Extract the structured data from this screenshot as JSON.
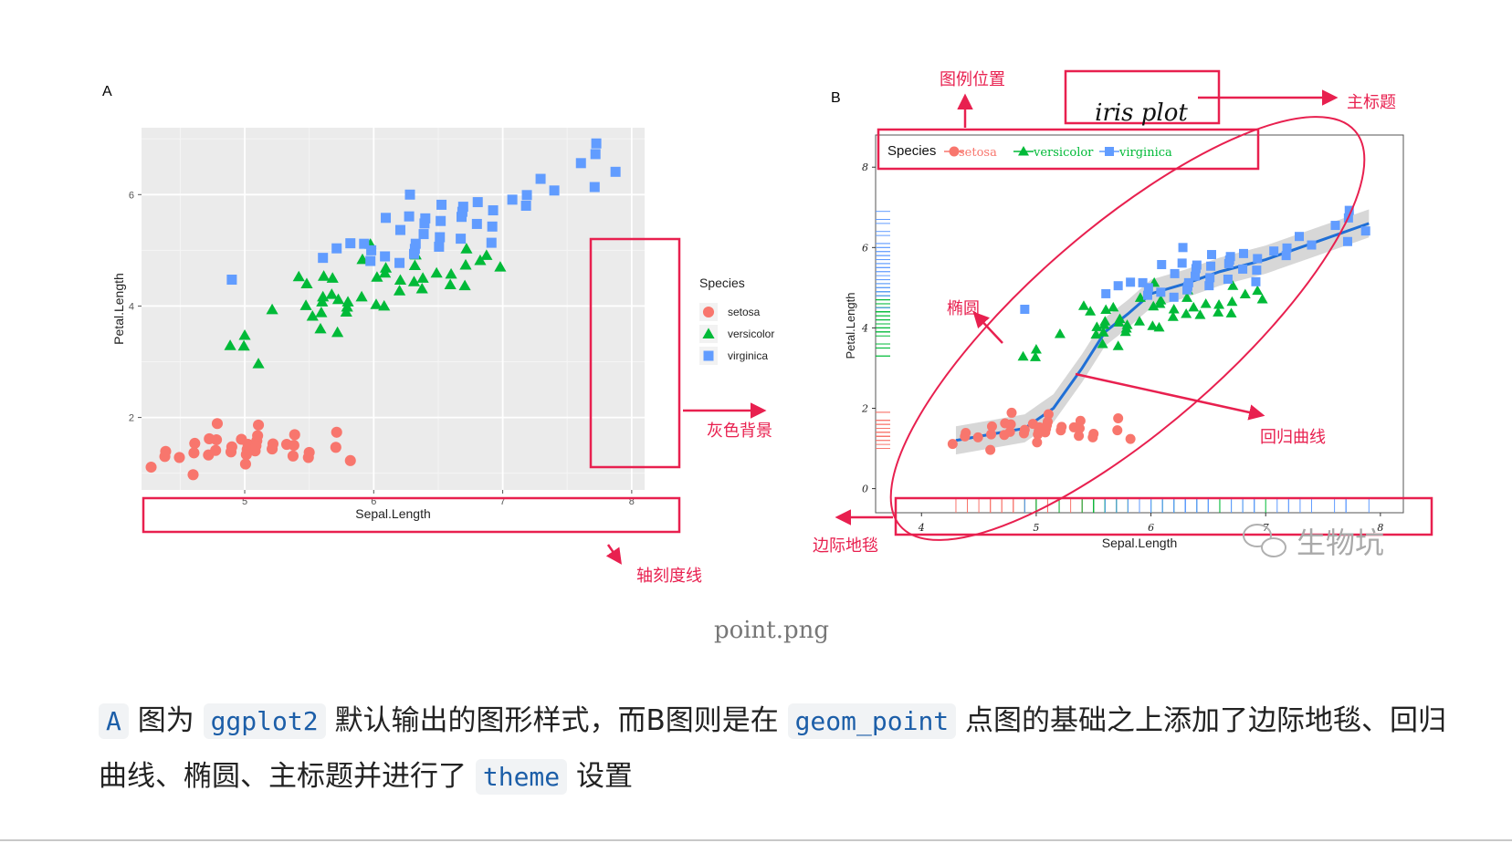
{
  "chart_data": [
    {
      "panel": "A",
      "type": "scatter",
      "title": "",
      "xlabel": "Sepal.Length",
      "ylabel": "Petal.Length",
      "xlim": [
        4.2,
        8.1
      ],
      "ylim": [
        0.7,
        7.2
      ],
      "xticks": [
        "5",
        "6",
        "7",
        "8"
      ],
      "yticks": [
        "2",
        "4",
        "6"
      ],
      "grid": true,
      "background": "#ebebeb",
      "legend_position": "right",
      "legend_title": "Species",
      "series": [
        {
          "name": "setosa",
          "marker": "circle",
          "color": "#f8766d",
          "points": [
            [
              4.3,
              1.1
            ],
            [
              4.4,
              1.3
            ],
            [
              4.4,
              1.4
            ],
            [
              4.5,
              1.3
            ],
            [
              4.6,
              1.0
            ],
            [
              4.6,
              1.4
            ],
            [
              4.6,
              1.5
            ],
            [
              4.7,
              1.3
            ],
            [
              4.7,
              1.6
            ],
            [
              4.8,
              1.4
            ],
            [
              4.8,
              1.6
            ],
            [
              4.8,
              1.9
            ],
            [
              4.9,
              1.4
            ],
            [
              4.9,
              1.5
            ],
            [
              5.0,
              1.2
            ],
            [
              5.0,
              1.3
            ],
            [
              5.0,
              1.4
            ],
            [
              5.0,
              1.5
            ],
            [
              5.0,
              1.6
            ],
            [
              5.1,
              1.4
            ],
            [
              5.1,
              1.5
            ],
            [
              5.1,
              1.6
            ],
            [
              5.1,
              1.7
            ],
            [
              5.1,
              1.9
            ],
            [
              5.2,
              1.4
            ],
            [
              5.2,
              1.5
            ],
            [
              5.3,
              1.5
            ],
            [
              5.4,
              1.3
            ],
            [
              5.4,
              1.5
            ],
            [
              5.4,
              1.7
            ],
            [
              5.5,
              1.3
            ],
            [
              5.5,
              1.4
            ],
            [
              5.7,
              1.5
            ],
            [
              5.7,
              1.7
            ],
            [
              5.8,
              1.2
            ]
          ]
        },
        {
          "name": "versicolor",
          "marker": "triangle",
          "color": "#00ba38",
          "points": [
            [
              4.9,
              3.3
            ],
            [
              5.0,
              3.3
            ],
            [
              5.0,
              3.5
            ],
            [
              5.1,
              3.0
            ],
            [
              5.2,
              3.9
            ],
            [
              5.4,
              4.5
            ],
            [
              5.5,
              3.8
            ],
            [
              5.5,
              4.0
            ],
            [
              5.5,
              4.4
            ],
            [
              5.6,
              3.6
            ],
            [
              5.6,
              3.9
            ],
            [
              5.6,
              4.1
            ],
            [
              5.6,
              4.2
            ],
            [
              5.6,
              4.5
            ],
            [
              5.7,
              3.5
            ],
            [
              5.7,
              4.1
            ],
            [
              5.7,
              4.2
            ],
            [
              5.7,
              4.5
            ],
            [
              5.8,
              3.9
            ],
            [
              5.8,
              4.0
            ],
            [
              5.8,
              4.1
            ],
            [
              5.9,
              4.2
            ],
            [
              5.9,
              4.8
            ],
            [
              6.0,
              4.0
            ],
            [
              6.0,
              4.5
            ],
            [
              6.0,
              5.1
            ],
            [
              6.1,
              4.0
            ],
            [
              6.1,
              4.6
            ],
            [
              6.1,
              4.7
            ],
            [
              6.2,
              4.3
            ],
            [
              6.2,
              4.5
            ],
            [
              6.3,
              4.4
            ],
            [
              6.3,
              4.7
            ],
            [
              6.3,
              4.9
            ],
            [
              6.4,
              4.3
            ],
            [
              6.4,
              4.5
            ],
            [
              6.5,
              4.6
            ],
            [
              6.6,
              4.4
            ],
            [
              6.6,
              4.6
            ],
            [
              6.7,
              4.4
            ],
            [
              6.7,
              4.7
            ],
            [
              6.7,
              5.0
            ],
            [
              6.8,
              4.8
            ],
            [
              6.9,
              4.9
            ],
            [
              7.0,
              4.7
            ]
          ]
        },
        {
          "name": "virginica",
          "marker": "square",
          "color": "#619cff",
          "points": [
            [
              4.9,
              4.5
            ],
            [
              5.6,
              4.9
            ],
            [
              5.7,
              5.0
            ],
            [
              5.8,
              5.1
            ],
            [
              5.9,
              5.1
            ],
            [
              6.0,
              4.8
            ],
            [
              6.0,
              5.0
            ],
            [
              6.1,
              4.9
            ],
            [
              6.1,
              5.6
            ],
            [
              6.2,
              4.8
            ],
            [
              6.2,
              5.4
            ],
            [
              6.3,
              4.9
            ],
            [
              6.3,
              5.0
            ],
            [
              6.3,
              5.1
            ],
            [
              6.3,
              5.6
            ],
            [
              6.3,
              6.0
            ],
            [
              6.4,
              5.3
            ],
            [
              6.4,
              5.5
            ],
            [
              6.4,
              5.6
            ],
            [
              6.5,
              5.1
            ],
            [
              6.5,
              5.2
            ],
            [
              6.5,
              5.5
            ],
            [
              6.5,
              5.8
            ],
            [
              6.7,
              5.2
            ],
            [
              6.7,
              5.6
            ],
            [
              6.7,
              5.7
            ],
            [
              6.7,
              5.8
            ],
            [
              6.8,
              5.5
            ],
            [
              6.8,
              5.9
            ],
            [
              6.9,
              5.1
            ],
            [
              6.9,
              5.4
            ],
            [
              6.9,
              5.7
            ],
            [
              7.1,
              5.9
            ],
            [
              7.2,
              5.8
            ],
            [
              7.2,
              6.0
            ],
            [
              7.3,
              6.3
            ],
            [
              7.4,
              6.1
            ],
            [
              7.6,
              6.6
            ],
            [
              7.7,
              6.1
            ],
            [
              7.7,
              6.7
            ],
            [
              7.7,
              6.9
            ],
            [
              7.9,
              6.4
            ]
          ]
        }
      ],
      "annotations": [
        "灰色背景",
        "轴刻度线"
      ]
    },
    {
      "panel": "B",
      "type": "scatter",
      "title": "iris plot",
      "xlabel": "Sepal.Length",
      "ylabel": "Petal.Length",
      "xlim": [
        3.6,
        8.2
      ],
      "ylim": [
        -0.6,
        8.8
      ],
      "xticks": [
        "4",
        "5",
        "6",
        "7",
        "8"
      ],
      "yticks": [
        "0",
        "2",
        "4",
        "6",
        "8"
      ],
      "grid": false,
      "background": "#ffffff",
      "legend_position": "top-left",
      "legend_title": "Species",
      "rug": true,
      "smooth": [
        [
          4.3,
          1.2
        ],
        [
          4.6,
          1.35
        ],
        [
          4.9,
          1.5
        ],
        [
          5.15,
          2.0
        ],
        [
          5.4,
          3.0
        ],
        [
          5.6,
          3.9
        ],
        [
          5.8,
          4.35
        ],
        [
          6.0,
          4.85
        ],
        [
          6.3,
          5.1
        ],
        [
          6.6,
          5.4
        ],
        [
          7.0,
          5.7
        ],
        [
          7.4,
          6.1
        ],
        [
          7.9,
          6.6
        ]
      ],
      "series": [
        {
          "name": "setosa",
          "marker": "circle",
          "color": "#f8766d",
          "points": [
            [
              4.3,
              1.1
            ],
            [
              4.4,
              1.3
            ],
            [
              4.4,
              1.4
            ],
            [
              4.5,
              1.3
            ],
            [
              4.6,
              1.0
            ],
            [
              4.6,
              1.4
            ],
            [
              4.6,
              1.5
            ],
            [
              4.7,
              1.3
            ],
            [
              4.7,
              1.6
            ],
            [
              4.8,
              1.4
            ],
            [
              4.8,
              1.6
            ],
            [
              4.8,
              1.9
            ],
            [
              4.9,
              1.4
            ],
            [
              4.9,
              1.5
            ],
            [
              5.0,
              1.2
            ],
            [
              5.0,
              1.3
            ],
            [
              5.0,
              1.4
            ],
            [
              5.0,
              1.5
            ],
            [
              5.0,
              1.6
            ],
            [
              5.1,
              1.4
            ],
            [
              5.1,
              1.5
            ],
            [
              5.1,
              1.6
            ],
            [
              5.1,
              1.7
            ],
            [
              5.1,
              1.9
            ],
            [
              5.2,
              1.4
            ],
            [
              5.2,
              1.5
            ],
            [
              5.3,
              1.5
            ],
            [
              5.4,
              1.3
            ],
            [
              5.4,
              1.5
            ],
            [
              5.4,
              1.7
            ],
            [
              5.5,
              1.3
            ],
            [
              5.5,
              1.4
            ],
            [
              5.7,
              1.5
            ],
            [
              5.7,
              1.7
            ],
            [
              5.8,
              1.2
            ]
          ]
        },
        {
          "name": "versicolor",
          "marker": "triangle",
          "color": "#00ba38",
          "points": [
            [
              4.9,
              3.3
            ],
            [
              5.0,
              3.3
            ],
            [
              5.0,
              3.5
            ],
            [
              5.2,
              3.9
            ],
            [
              5.4,
              4.5
            ],
            [
              5.5,
              3.8
            ],
            [
              5.5,
              4.0
            ],
            [
              5.5,
              4.4
            ],
            [
              5.6,
              3.6
            ],
            [
              5.6,
              3.9
            ],
            [
              5.6,
              4.1
            ],
            [
              5.6,
              4.2
            ],
            [
              5.6,
              4.5
            ],
            [
              5.7,
              3.5
            ],
            [
              5.7,
              4.1
            ],
            [
              5.7,
              4.2
            ],
            [
              5.7,
              4.5
            ],
            [
              5.8,
              3.9
            ],
            [
              5.8,
              4.0
            ],
            [
              5.8,
              4.1
            ],
            [
              5.9,
              4.2
            ],
            [
              5.9,
              4.8
            ],
            [
              6.0,
              4.0
            ],
            [
              6.0,
              4.5
            ],
            [
              6.0,
              5.1
            ],
            [
              6.1,
              4.0
            ],
            [
              6.1,
              4.6
            ],
            [
              6.1,
              4.7
            ],
            [
              6.2,
              4.3
            ],
            [
              6.2,
              4.5
            ],
            [
              6.3,
              4.4
            ],
            [
              6.3,
              4.7
            ],
            [
              6.3,
              4.9
            ],
            [
              6.4,
              4.3
            ],
            [
              6.4,
              4.5
            ],
            [
              6.5,
              4.6
            ],
            [
              6.6,
              4.4
            ],
            [
              6.6,
              4.6
            ],
            [
              6.7,
              4.4
            ],
            [
              6.7,
              4.7
            ],
            [
              6.7,
              5.0
            ],
            [
              6.8,
              4.8
            ],
            [
              6.9,
              4.9
            ],
            [
              7.0,
              4.7
            ]
          ]
        },
        {
          "name": "virginica",
          "marker": "square",
          "color": "#619cff",
          "points": [
            [
              4.9,
              4.5
            ],
            [
              5.6,
              4.9
            ],
            [
              5.7,
              5.0
            ],
            [
              5.8,
              5.1
            ],
            [
              5.9,
              5.1
            ],
            [
              6.0,
              4.8
            ],
            [
              6.0,
              5.0
            ],
            [
              6.1,
              4.9
            ],
            [
              6.1,
              5.6
            ],
            [
              6.2,
              4.8
            ],
            [
              6.2,
              5.4
            ],
            [
              6.3,
              4.9
            ],
            [
              6.3,
              5.0
            ],
            [
              6.3,
              5.1
            ],
            [
              6.3,
              5.6
            ],
            [
              6.3,
              6.0
            ],
            [
              6.4,
              5.3
            ],
            [
              6.4,
              5.5
            ],
            [
              6.4,
              5.6
            ],
            [
              6.5,
              5.1
            ],
            [
              6.5,
              5.2
            ],
            [
              6.5,
              5.5
            ],
            [
              6.5,
              5.8
            ],
            [
              6.7,
              5.2
            ],
            [
              6.7,
              5.6
            ],
            [
              6.7,
              5.7
            ],
            [
              6.7,
              5.8
            ],
            [
              6.8,
              5.5
            ],
            [
              6.8,
              5.9
            ],
            [
              6.9,
              5.1
            ],
            [
              6.9,
              5.4
            ],
            [
              6.9,
              5.7
            ],
            [
              7.1,
              5.9
            ],
            [
              7.2,
              5.8
            ],
            [
              7.2,
              6.0
            ],
            [
              7.3,
              6.3
            ],
            [
              7.4,
              6.1
            ],
            [
              7.6,
              6.6
            ],
            [
              7.7,
              6.1
            ],
            [
              7.7,
              6.7
            ],
            [
              7.7,
              6.9
            ],
            [
              7.9,
              6.4
            ]
          ]
        }
      ],
      "annotations": [
        "图例位置",
        "主标题",
        "椭圆",
        "回归曲线",
        "边际地毯"
      ]
    }
  ],
  "figure": {
    "panel_a_label": "A",
    "panel_b_label": "B",
    "watermark": "生物坑",
    "caption": "point.png"
  },
  "paragraph": {
    "p1": "A",
    "p2": " 图为 ",
    "p3": "ggplot2",
    "p4": " 默认输出的图形样式，而B图则是在 ",
    "p5": "geom_point",
    "p6": " 点图的基础之上添加了边际地毯、回归曲线、椭圆、主标题并进行了 ",
    "p7": "theme",
    "p8": " 设置"
  },
  "colors": {
    "annotation": "#e8204f",
    "regression": "#1f6fd6",
    "setosa": "#f8766d",
    "versicolor": "#00ba38",
    "virginica": "#619cff"
  }
}
